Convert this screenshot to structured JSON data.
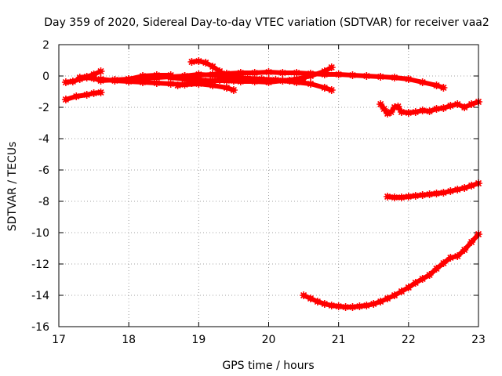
{
  "chart_data": {
    "type": "scatter",
    "title": "Day 359 of 2020, Sidereal Day-to-day VTEC variation (SDTVAR) for receiver vaa2",
    "xlabel": "GPS time / hours",
    "ylabel": "SDTVAR / TECUs",
    "xlim": [
      17,
      23
    ],
    "ylim": [
      -16,
      2
    ],
    "xticks": [
      17,
      18,
      19,
      20,
      21,
      22,
      23
    ],
    "yticks": [
      -16,
      -14,
      -12,
      -10,
      -8,
      -6,
      -4,
      -2,
      0,
      2
    ],
    "grid": true,
    "marker": "star",
    "series_color": "#ff0000",
    "series": [
      {
        "x": [
          17.1,
          17.25,
          17.4,
          17.5,
          17.6
        ],
        "y": [
          -1.5,
          -1.3,
          -1.2,
          -1.1,
          -1.05
        ]
      },
      {
        "x": [
          17.1,
          17.2,
          17.3,
          17.4,
          17.5,
          17.6,
          17.8,
          18.0,
          18.2,
          18.4,
          18.6,
          18.8,
          19.0,
          19.2,
          19.4,
          19.6,
          19.8,
          20.0,
          20.2,
          20.4,
          20.6,
          20.8,
          21.0,
          21.2,
          21.4,
          21.6,
          21.8,
          22.0,
          22.2,
          22.4,
          22.5
        ],
        "y": [
          -0.4,
          -0.35,
          -0.2,
          -0.1,
          -0.15,
          -0.3,
          -0.25,
          -0.2,
          -0.15,
          -0.1,
          -0.05,
          0.0,
          0.05,
          0.1,
          0.15,
          0.2,
          0.2,
          0.25,
          0.2,
          0.2,
          0.15,
          0.1,
          0.1,
          0.05,
          0.0,
          -0.05,
          -0.1,
          -0.2,
          -0.4,
          -0.6,
          -0.75
        ]
      },
      {
        "x": [
          17.3,
          17.4,
          17.5,
          17.6
        ],
        "y": [
          -0.1,
          -0.05,
          0.1,
          0.3
        ]
      },
      {
        "x": [
          17.6,
          17.8,
          18.0,
          18.2,
          18.4,
          18.6,
          18.8,
          19.0,
          19.2,
          19.4,
          19.5
        ],
        "y": [
          -0.2,
          -0.3,
          -0.35,
          -0.4,
          -0.45,
          -0.5,
          -0.55,
          -0.5,
          -0.6,
          -0.75,
          -0.9
        ]
      },
      {
        "x": [
          18.0,
          18.2,
          18.4,
          18.6
        ],
        "y": [
          -0.2,
          0.0,
          0.05,
          0.05
        ]
      },
      {
        "x": [
          18.9,
          19.0,
          19.1,
          19.2,
          19.3,
          19.4,
          19.5
        ],
        "y": [
          0.9,
          0.95,
          0.85,
          0.6,
          0.3,
          0.0,
          -0.3
        ]
      },
      {
        "x": [
          18.6,
          18.8,
          19.0,
          19.2,
          19.4,
          19.6,
          19.8,
          20.0,
          20.2,
          20.4,
          20.6,
          20.8,
          20.9
        ],
        "y": [
          -0.1,
          -0.2,
          -0.25,
          -0.3,
          -0.3,
          -0.35,
          -0.35,
          -0.4,
          -0.3,
          -0.2,
          0.0,
          0.3,
          0.55
        ]
      },
      {
        "x": [
          18.8,
          19.0,
          19.2,
          19.4,
          19.6,
          19.8,
          20.0,
          20.2,
          20.4,
          20.6,
          20.8,
          20.9
        ],
        "y": [
          0.0,
          0.1,
          0.05,
          0.0,
          -0.1,
          -0.2,
          -0.25,
          -0.3,
          -0.4,
          -0.5,
          -0.75,
          -0.9
        ]
      },
      {
        "x": [
          18.7,
          18.9,
          19.1,
          19.3,
          19.5,
          19.7,
          19.9,
          20.1,
          20.3,
          20.5
        ],
        "y": [
          -0.6,
          -0.45,
          -0.35,
          -0.25,
          -0.2,
          -0.15,
          -0.2,
          -0.25,
          -0.3,
          -0.35
        ]
      },
      {
        "x": [
          21.6,
          21.65,
          21.7,
          21.75,
          21.8,
          21.85,
          21.9,
          22.0,
          22.1,
          22.2,
          22.3,
          22.4,
          22.5,
          22.6,
          22.7,
          22.8,
          22.9,
          23.0
        ],
        "y": [
          -1.8,
          -2.1,
          -2.4,
          -2.3,
          -2.0,
          -1.95,
          -2.3,
          -2.35,
          -2.3,
          -2.2,
          -2.25,
          -2.1,
          -2.05,
          -1.9,
          -1.8,
          -2.0,
          -1.8,
          -1.65
        ]
      },
      {
        "x": [
          21.7,
          21.8,
          21.9,
          22.0,
          22.1,
          22.2,
          22.3,
          22.4,
          22.5,
          22.6,
          22.7,
          22.8,
          22.9,
          23.0
        ],
        "y": [
          -7.7,
          -7.75,
          -7.75,
          -7.7,
          -7.65,
          -7.6,
          -7.55,
          -7.5,
          -7.45,
          -7.35,
          -7.25,
          -7.15,
          -7.0,
          -6.85
        ]
      },
      {
        "x": [
          20.5,
          20.6,
          20.7,
          20.8,
          20.9,
          21.0,
          21.1,
          21.2,
          21.3,
          21.4,
          21.5,
          21.6,
          21.7,
          21.8,
          21.9,
          22.0,
          22.1,
          22.2,
          22.3,
          22.4,
          22.5,
          22.6,
          22.7,
          22.8,
          22.9,
          23.0
        ],
        "y": [
          -14.0,
          -14.2,
          -14.4,
          -14.55,
          -14.65,
          -14.7,
          -14.75,
          -14.75,
          -14.7,
          -14.65,
          -14.55,
          -14.4,
          -14.2,
          -14.0,
          -13.75,
          -13.5,
          -13.2,
          -12.95,
          -12.7,
          -12.3,
          -11.95,
          -11.6,
          -11.5,
          -11.1,
          -10.6,
          -10.1
        ]
      }
    ]
  }
}
